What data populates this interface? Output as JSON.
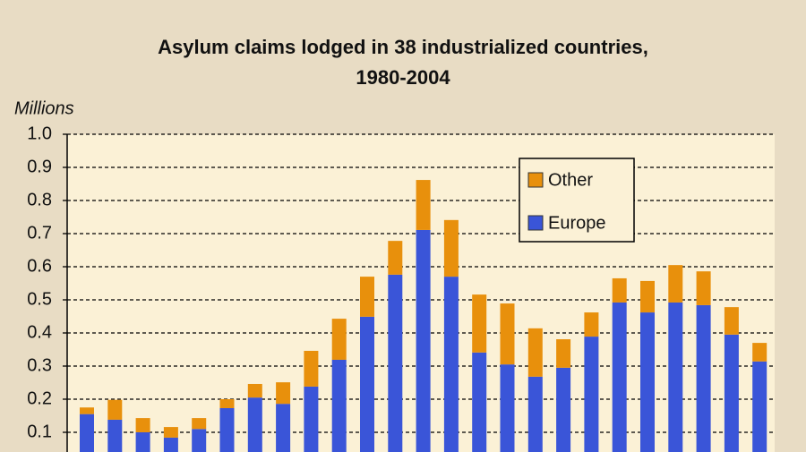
{
  "chart_data": {
    "type": "stacked_bar",
    "title": "Asylum claims lodged in 38 industrialized countries, 1980-2004",
    "y_label": "Millions",
    "series": [
      {
        "name": "Europe",
        "color": "#3a55d8",
        "values": [
          0.155,
          0.138,
          0.1,
          0.084,
          0.11,
          0.173,
          0.205,
          0.186,
          0.238,
          0.319,
          0.449,
          0.576,
          0.711,
          0.57,
          0.341,
          0.305,
          0.268,
          0.295,
          0.389,
          0.492,
          0.462,
          0.492,
          0.484,
          0.395,
          0.314
        ]
      },
      {
        "name": "Other",
        "color": "#e8900c",
        "values": [
          0.02,
          0.06,
          0.043,
          0.032,
          0.033,
          0.027,
          0.041,
          0.065,
          0.108,
          0.124,
          0.121,
          0.102,
          0.151,
          0.171,
          0.175,
          0.184,
          0.146,
          0.086,
          0.073,
          0.073,
          0.095,
          0.113,
          0.102,
          0.083,
          0.056
        ]
      }
    ],
    "ylim": [
      0.04,
      1.0
    ],
    "yticks": [
      {
        "value": 0.1,
        "label": "0.1"
      },
      {
        "value": 0.2,
        "label": "0.2"
      },
      {
        "value": 0.3,
        "label": "0.3"
      },
      {
        "value": 0.4,
        "label": "0.4"
      },
      {
        "value": 0.5,
        "label": "0.5"
      },
      {
        "value": 0.6,
        "label": "0.6"
      },
      {
        "value": 0.7,
        "label": "0.7"
      },
      {
        "value": 0.8,
        "label": "0.8"
      },
      {
        "value": 0.9,
        "label": "0.9"
      },
      {
        "value": 1.0,
        "label": "1.0"
      }
    ],
    "grid": true,
    "legend": "upper-right"
  }
}
